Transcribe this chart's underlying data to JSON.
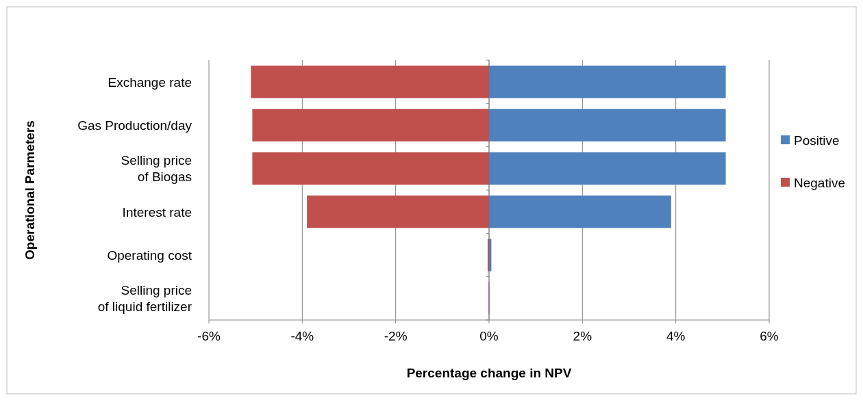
{
  "chart_data": {
    "type": "bar",
    "orientation": "horizontal",
    "xlabel": "Percentage change in NPV",
    "ylabel": "Operational Parmeters",
    "categories": [
      "Exchange rate",
      "Gas Production/day",
      "Selling price\nof Biogas",
      "Interest rate",
      "Operating cost",
      "Selling price\nof liquid fertilizer"
    ],
    "series": [
      {
        "name": "Positive",
        "color": "#4f81bd",
        "values": [
          5.07,
          5.07,
          5.07,
          3.9,
          0.05,
          0.01
        ]
      },
      {
        "name": "Negative",
        "color": "#c0504d",
        "values": [
          -5.1,
          -5.07,
          -5.07,
          -3.9,
          -0.03,
          -0.01
        ]
      }
    ],
    "xlim": [
      -6,
      6
    ],
    "xticks": [
      {
        "value": -6,
        "label": "-6%"
      },
      {
        "value": -4,
        "label": "-4%"
      },
      {
        "value": -2,
        "label": "-2%"
      },
      {
        "value": 0,
        "label": "0%"
      },
      {
        "value": 2,
        "label": "2%"
      },
      {
        "value": 4,
        "label": "4%"
      },
      {
        "value": 6,
        "label": "6%"
      }
    ],
    "grid": "x",
    "legend": "right",
    "stacked": true
  }
}
